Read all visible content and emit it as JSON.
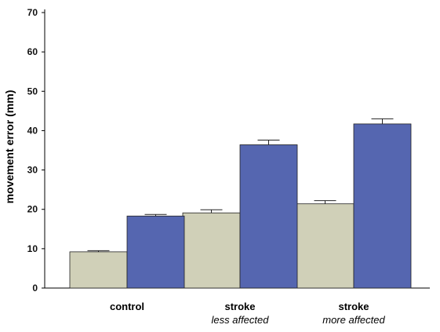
{
  "chart_data": {
    "type": "bar",
    "ylabel": "movement error (mm)",
    "xlabel": "",
    "ylim": [
      0,
      70
    ],
    "yticks": [
      0,
      10,
      20,
      30,
      40,
      50,
      60,
      70
    ],
    "grid": false,
    "categories": [
      {
        "label": "control",
        "sublabel": ""
      },
      {
        "label": "stroke",
        "sublabel": "less affected"
      },
      {
        "label": "stroke",
        "sublabel": "more affected"
      }
    ],
    "series": [
      {
        "color": "#d0d0b8",
        "values": [
          9.2,
          19.1,
          21.4
        ],
        "errors": [
          0.3,
          0.8,
          0.8
        ]
      },
      {
        "color": "#5566b0",
        "values": [
          18.3,
          36.4,
          41.7
        ],
        "errors": [
          0.4,
          1.2,
          1.3
        ]
      }
    ]
  }
}
